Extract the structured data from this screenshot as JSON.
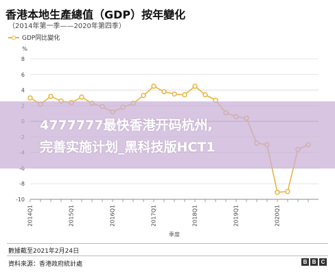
{
  "header": {
    "title": "香港本地生產總值（GDP）按年變化",
    "subtitle": "（2014年第一季——2020年第四季）"
  },
  "legend": {
    "label": "GDP同比變化"
  },
  "chart_data": {
    "type": "line",
    "ylabel": "%",
    "xlabel": "季度",
    "ylim": [
      -10,
      8
    ],
    "yticks": [
      8,
      6,
      4,
      2,
      0,
      -2,
      -4,
      -6,
      -8,
      -10
    ],
    "grid": true,
    "legend_position": "top-left",
    "x": [
      "2014Q1",
      "2014Q2",
      "2014Q3",
      "2014Q4",
      "2015Q1",
      "2015Q2",
      "2015Q3",
      "2015Q4",
      "2016Q1",
      "2016Q2",
      "2016Q3",
      "2016Q4",
      "2017Q1",
      "2017Q2",
      "2017Q3",
      "2017Q4",
      "2018Q1",
      "2018Q2",
      "2018Q3",
      "2018Q4",
      "2019Q1",
      "2019Q2",
      "2019Q3",
      "2019Q4",
      "2020Q1",
      "2020Q2",
      "2020Q3",
      "2020Q4"
    ],
    "xtick_labels": [
      "2014Q1",
      "2015Q1",
      "2016Q1",
      "2017Q1",
      "2018Q1",
      "2019Q1",
      "2020Q1"
    ],
    "series": [
      {
        "name": "GDP同比變化",
        "color": "#e9b33c",
        "values": [
          3.0,
          2.2,
          3.2,
          2.6,
          2.4,
          3.1,
          2.3,
          1.9,
          1.2,
          1.8,
          2.3,
          3.3,
          4.5,
          3.8,
          3.5,
          3.4,
          4.5,
          3.4,
          2.7,
          1.1,
          0.6,
          0.4,
          -2.8,
          -3.0,
          -9.1,
          -9.0,
          -3.6,
          -3.0
        ]
      }
    ]
  },
  "overlay": {
    "line1": "4777777最快香港开码杭州,",
    "line2": "完善实施计划_黑科技版HCT1"
  },
  "footer": {
    "date_note": "數據截至2021年2月24日",
    "source": "資料來源：香港政府統計處",
    "logo_letters": [
      "B",
      "B",
      "C"
    ]
  }
}
